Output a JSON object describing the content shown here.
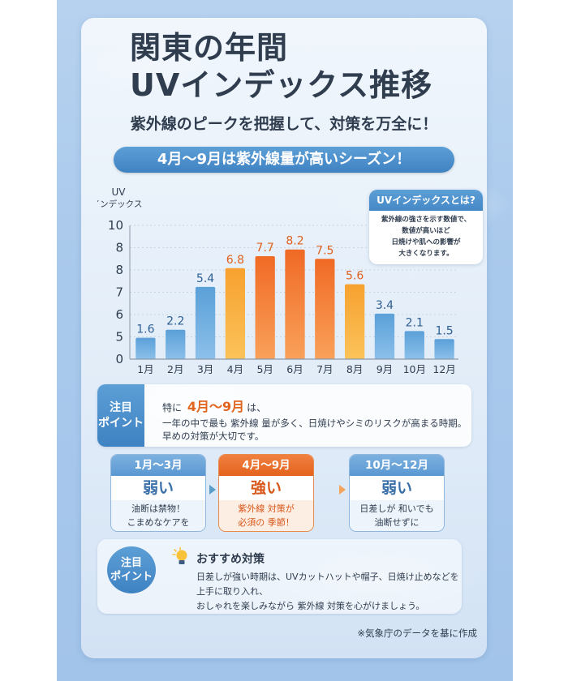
{
  "header": {
    "title_line1": "関東の年間",
    "title_line2": "UVインデックス推移",
    "subtitle": "紫外線のピークを把握して、対策を万全に！",
    "banner": "4月～9月は紫外線量が高いシーズン！"
  },
  "chart_data": {
    "type": "bar",
    "title": "関東の年間UVインデックス推移",
    "ylabel_line1": "UV",
    "ylabel_line2": "インデックス",
    "xlabel": "",
    "categories": [
      "1月",
      "2月",
      "3月",
      "4月",
      "5月",
      "6月",
      "7月",
      "8月",
      "9月",
      "10月",
      "12月"
    ],
    "values": [
      1.6,
      2.2,
      5.4,
      6.8,
      7.7,
      8.2,
      7.5,
      5.6,
      3.4,
      2.1,
      1.5
    ],
    "value_labels": [
      "1.6",
      "2.2",
      "5.4",
      "6.8",
      "7.7",
      "8.2",
      "7.5",
      "5.6",
      "3.4",
      "2.1",
      "1.5"
    ],
    "series_groups": [
      "low",
      "low",
      "low",
      "mid",
      "high",
      "high",
      "high",
      "mid",
      "low",
      "low",
      "low"
    ],
    "yticks": [
      "0",
      "5",
      "6",
      "7",
      "8",
      "8",
      "10"
    ],
    "grid": true,
    "colors": {
      "low_top": "#5aa0d8",
      "low_bottom": "#8cc0ea",
      "low_label": "#2e5f94",
      "mid_top": "#f7a12f",
      "mid_bottom": "#fbc35a",
      "high_top": "#f06a25",
      "high_bottom": "#f9a15a",
      "high_label": "#e0601e"
    }
  },
  "info_box": {
    "title": "UVインデックスとは?",
    "lines": [
      "紫外線の強さを示す数値で、",
      "数値が高いほど",
      "日焼けや肌への影響が",
      "大きくなります。"
    ]
  },
  "attention": {
    "badge_line1": "注目",
    "badge_line2": "ポイント",
    "prefix": "特に",
    "highlight": "4月～9月",
    "suffix": "は、",
    "line2": "一年の中で最も 紫外線 量が多く、日焼けやシミのリスクが高まる時期。",
    "line3": "早めの対策が大切です。"
  },
  "seasons": [
    {
      "period": "1月～3月",
      "level": "弱い",
      "desc1": "油断は禁物！",
      "desc2": "こまめなケアを"
    },
    {
      "period": "4月～9月",
      "level": "強い",
      "desc1": "紫外線 対策が",
      "desc2": "必須の 季節！"
    },
    {
      "period": "10月～12月",
      "level": "弱い",
      "desc1": "日差しが 和いでも",
      "desc2": "油断せずに"
    }
  ],
  "recommendation": {
    "badge_line1": "注目",
    "badge_line2": "ポイント",
    "icon": "lightbulb-icon",
    "title": "おすすめ対策",
    "line1": "日差しが強い時期は、UVカットハットや帽子、日焼け止めなどを",
    "line2": "上手に取り入れ、",
    "line3": "おしゃれを楽しみながら 紫外線 対策を心がけましょう。"
  },
  "source_note": "※気象庁のデータを基に作成"
}
